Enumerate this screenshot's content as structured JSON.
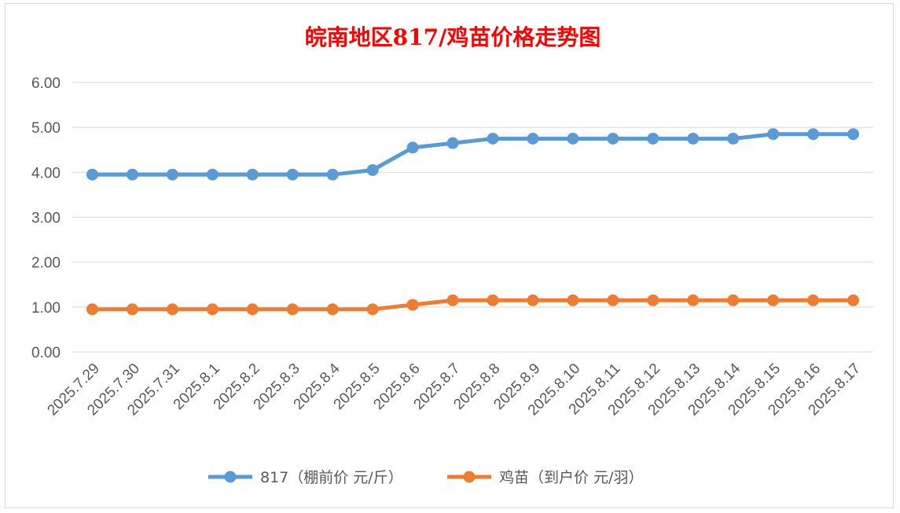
{
  "chart_data": {
    "type": "line",
    "title": "皖南地区817/鸡苗价格走势图",
    "categories": [
      "2025.7.29",
      "2025.7.30",
      "2025.7.31",
      "2025.8.1",
      "2025.8.2",
      "2025.8.3",
      "2025.8.4",
      "2025.8.5",
      "2025.8.6",
      "2025.8.7",
      "2025.8.8",
      "2025.8.9",
      "2025.8.10",
      "2025.8.11",
      "2025.8.12",
      "2025.8.13",
      "2025.8.14",
      "2025.8.15",
      "2025.8.16",
      "2025.8.17"
    ],
    "series": [
      {
        "name": "817（棚前价 元/斤）",
        "color": "#5b9bd5",
        "values": [
          3.95,
          3.95,
          3.95,
          3.95,
          3.95,
          3.95,
          3.95,
          4.05,
          4.55,
          4.65,
          4.75,
          4.75,
          4.75,
          4.75,
          4.75,
          4.75,
          4.75,
          4.85,
          4.85,
          4.85
        ]
      },
      {
        "name": "鸡苗（到户价 元/羽）",
        "color": "#ed7d31",
        "values": [
          0.95,
          0.95,
          0.95,
          0.95,
          0.95,
          0.95,
          0.95,
          0.95,
          1.05,
          1.15,
          1.15,
          1.15,
          1.15,
          1.15,
          1.15,
          1.15,
          1.15,
          1.15,
          1.15,
          1.15
        ]
      }
    ],
    "ylim": [
      0,
      6
    ],
    "yticks": [
      "0.00",
      "1.00",
      "2.00",
      "3.00",
      "4.00",
      "5.00",
      "6.00"
    ],
    "grid": true,
    "legend": "bottom"
  }
}
